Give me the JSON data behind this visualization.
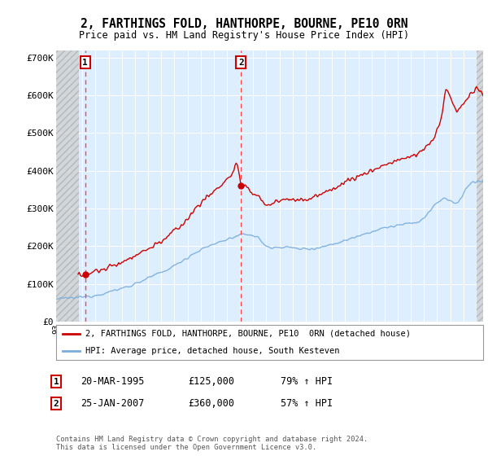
{
  "title": "2, FARTHINGS FOLD, HANTHORPE, BOURNE, PE10 0RN",
  "subtitle": "Price paid vs. HM Land Registry's House Price Index (HPI)",
  "legend_label_red": "2, FARTHINGS FOLD, HANTHORPE, BOURNE, PE10  0RN (detached house)",
  "legend_label_blue": "HPI: Average price, detached house, South Kesteven",
  "transaction1_date": "20-MAR-1995",
  "transaction1_price": 125000,
  "transaction1_pct": "79% ↑ HPI",
  "transaction2_date": "25-JAN-2007",
  "transaction2_price": 360000,
  "transaction2_pct": "57% ↑ HPI",
  "footer": "Contains HM Land Registry data © Crown copyright and database right 2024.\nThis data is licensed under the Open Government Licence v3.0.",
  "xlim_left": 1993.0,
  "xlim_right": 2025.5,
  "ylim_bottom": 0,
  "ylim_top": 720000,
  "background_color": "#ffffff",
  "plot_bg_color": "#ddeeff",
  "red_line_color": "#cc0000",
  "blue_line_color": "#7aaddb",
  "transaction1_x": 1995.22,
  "transaction2_x": 2007.07,
  "hatch_end_x": 1994.75,
  "hatch_start_x2": 2025.0
}
